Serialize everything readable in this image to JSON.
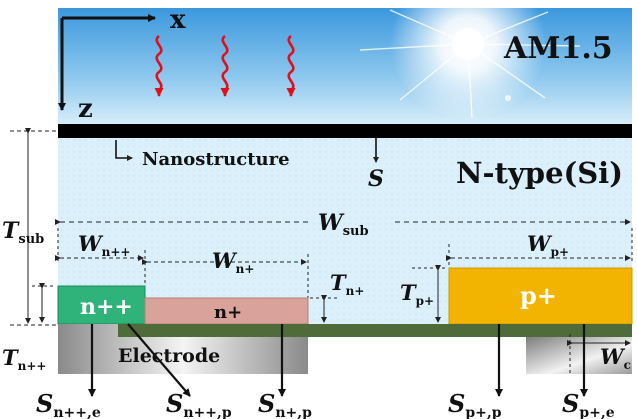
{
  "axes": {
    "x": "x",
    "z": "z"
  },
  "spectrum": "AM1.5",
  "labels": {
    "nanostructure": "Nanostructure",
    "s": "S",
    "material": "N-type(Si)",
    "electrode": "Electrode"
  },
  "regions": {
    "n_plus_plus": "n++",
    "n_plus": "n+",
    "p_plus": "p+"
  },
  "dimensions": {
    "t_sub": {
      "main": "T",
      "sub": "sub"
    },
    "w_sub": {
      "main": "W",
      "sub": "sub"
    },
    "w_npp": {
      "main": "W",
      "sub": "n++"
    },
    "w_np": {
      "main": "W",
      "sub": "n+"
    },
    "w_pp": {
      "main": "W",
      "sub": "p+"
    },
    "t_np": {
      "main": "T",
      "sub": "n+"
    },
    "t_pp": {
      "main": "T",
      "sub": "p+"
    },
    "t_npp": {
      "main": "T",
      "sub": "n++"
    },
    "w_c": {
      "main": "W",
      "sub": "c"
    }
  },
  "recombination": {
    "s_npp_e": {
      "main": "S",
      "sub": "n++,e"
    },
    "s_npp_p": {
      "main": "S",
      "sub": "n++,p"
    },
    "s_np_p": {
      "main": "S",
      "sub": "n+,p"
    },
    "s_pp_p": {
      "main": "S",
      "sub": "p+,p"
    },
    "s_pp_e": {
      "main": "S",
      "sub": "p+,e"
    }
  },
  "colors": {
    "sky_top": "#3f9fe0",
    "sky_bottom": "#d8eefa",
    "substrate": "#dcf0fb",
    "n_plus_plus": "#2fb37a",
    "n_plus": "#d9a39c",
    "p_plus": "#f2b400",
    "passivation": "#4f6b3a",
    "photon_arrow": "#e0101a"
  }
}
